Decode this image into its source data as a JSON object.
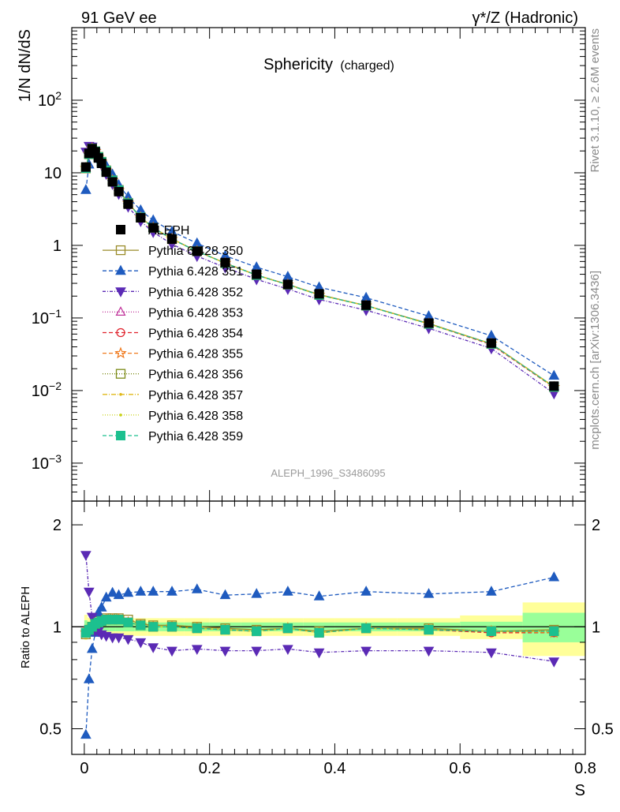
{
  "header": {
    "left": "91 GeV ee",
    "right": "γ*/Z (Hadronic)"
  },
  "side_labels": {
    "top": "Rivet 3.1.10, ≥ 2.6M events",
    "bottom": "mcplots.cern.ch [arXiv:1306.3436]"
  },
  "chart_data": [
    {
      "type": "line",
      "title": "Sphericity",
      "subtitle": "(charged)",
      "ylabel": "1/N dN/dS",
      "yscale": "log",
      "ylim": [
        0.0003,
        1000
      ],
      "xlim": [
        -0.02,
        0.8
      ],
      "ytick_labels": [
        "10^-3",
        "10^-2",
        "10^-1",
        "1",
        "10",
        "10^2"
      ],
      "watermark": "ALEPH_1996_S3486095",
      "legend_position": "middle-left",
      "x": [
        0.0025,
        0.0075,
        0.0125,
        0.0175,
        0.0225,
        0.0275,
        0.035,
        0.045,
        0.055,
        0.07,
        0.09,
        0.11,
        0.14,
        0.18,
        0.225,
        0.275,
        0.325,
        0.375,
        0.45,
        0.55,
        0.65,
        0.75
      ],
      "series": [
        {
          "name": "ALEPH",
          "color": "#000000",
          "marker": "square-filled",
          "dash": "",
          "values": [
            12,
            18.5,
            21.5,
            19.5,
            16,
            13.5,
            10.2,
            7.5,
            5.5,
            3.7,
            2.4,
            1.75,
            1.22,
            0.83,
            0.58,
            0.4,
            0.29,
            0.215,
            0.15,
            0.085,
            0.045,
            0.0115
          ]
        },
        {
          "name": "Pythia 6.428 350",
          "color": "#9a8c2a",
          "marker": "square-open",
          "dash": "",
          "values": [
            11.5,
            18,
            21.5,
            19.8,
            16.6,
            14.2,
            10.8,
            7.9,
            5.8,
            3.85,
            2.45,
            1.76,
            1.23,
            0.83,
            0.57,
            0.39,
            0.29,
            0.21,
            0.148,
            0.084,
            0.044,
            0.0113
          ]
        },
        {
          "name": "Pythia 6.428 351",
          "color": "#1f5bbf",
          "marker": "triangle-up",
          "dash": "5,3",
          "values": [
            5.8,
            13,
            18.5,
            18.8,
            17.6,
            15.3,
            12.5,
            9.5,
            6.8,
            4.65,
            3.05,
            2.22,
            1.55,
            1.07,
            0.72,
            0.5,
            0.37,
            0.265,
            0.19,
            0.106,
            0.057,
            0.016
          ]
        },
        {
          "name": "Pythia 6.428 352",
          "color": "#5b2ab5",
          "marker": "triangle-down",
          "dash": "4,2,1,2",
          "values": [
            19.5,
            23.5,
            23,
            19,
            15.5,
            12.8,
            9.6,
            7,
            5.1,
            3.4,
            2.15,
            1.52,
            1.04,
            0.71,
            0.495,
            0.34,
            0.25,
            0.18,
            0.128,
            0.072,
            0.038,
            0.0091
          ]
        },
        {
          "name": "Pythia 6.428 353",
          "color": "#c0329a",
          "marker": "triangle-open",
          "dash": "1,2",
          "values": [
            11.6,
            18.1,
            21.6,
            19.8,
            16.5,
            14.1,
            10.7,
            7.85,
            5.75,
            3.82,
            2.43,
            1.75,
            1.22,
            0.83,
            0.57,
            0.39,
            0.288,
            0.208,
            0.148,
            0.083,
            0.044,
            0.0112
          ]
        },
        {
          "name": "Pythia 6.428 354",
          "color": "#e0202a",
          "marker": "circle-open",
          "dash": "5,3",
          "values": [
            11.6,
            18.1,
            21.6,
            19.8,
            16.5,
            14.1,
            10.7,
            7.85,
            5.75,
            3.82,
            2.43,
            1.75,
            1.22,
            0.83,
            0.57,
            0.39,
            0.288,
            0.208,
            0.148,
            0.083,
            0.043,
            0.011
          ]
        },
        {
          "name": "Pythia 6.428 355",
          "color": "#f07a1e",
          "marker": "star-open",
          "dash": "5,3",
          "values": [
            11.6,
            18.1,
            21.6,
            19.8,
            16.5,
            14.1,
            10.7,
            7.85,
            5.75,
            3.82,
            2.43,
            1.75,
            1.22,
            0.83,
            0.57,
            0.39,
            0.288,
            0.208,
            0.148,
            0.083,
            0.044,
            0.0111
          ]
        },
        {
          "name": "Pythia 6.428 356",
          "color": "#7d8c1a",
          "marker": "square-open",
          "dash": "1,2",
          "values": [
            11.6,
            18.1,
            21.6,
            19.8,
            16.5,
            14.1,
            10.7,
            7.85,
            5.75,
            3.82,
            2.43,
            1.75,
            1.22,
            0.83,
            0.57,
            0.39,
            0.288,
            0.208,
            0.148,
            0.083,
            0.044,
            0.0112
          ]
        },
        {
          "name": "Pythia 6.428 357",
          "color": "#e0b818",
          "marker": "dot",
          "dash": "6,2,1,2",
          "values": [
            11.6,
            18.1,
            21.6,
            19.8,
            16.5,
            14.1,
            10.7,
            7.85,
            5.75,
            3.82,
            2.43,
            1.75,
            1.22,
            0.83,
            0.57,
            0.39,
            0.288,
            0.208,
            0.148,
            0.083,
            0.044,
            0.0112
          ]
        },
        {
          "name": "Pythia 6.428 358",
          "color": "#c9d21a",
          "marker": "dot",
          "dash": "1,2",
          "values": [
            11.6,
            18.1,
            21.6,
            19.8,
            16.5,
            14.1,
            10.7,
            7.85,
            5.75,
            3.82,
            2.43,
            1.75,
            1.22,
            0.83,
            0.57,
            0.39,
            0.288,
            0.208,
            0.148,
            0.083,
            0.044,
            0.0112
          ]
        },
        {
          "name": "Pythia 6.428 359",
          "color": "#1cc08f",
          "marker": "square-filled",
          "dash": "5,3",
          "values": [
            11.6,
            18.1,
            21.6,
            19.8,
            16.5,
            14.1,
            10.7,
            7.85,
            5.75,
            3.82,
            2.43,
            1.75,
            1.22,
            0.83,
            0.57,
            0.39,
            0.288,
            0.208,
            0.148,
            0.083,
            0.044,
            0.0112
          ]
        }
      ]
    },
    {
      "type": "line",
      "title": "",
      "ylabel": "Ratio to ALEPH",
      "xlabel": "S",
      "yscale": "log",
      "ylim": [
        0.42,
        2.35
      ],
      "xlim": [
        -0.02,
        0.8
      ],
      "ytick_labels": [
        "0.5",
        "1",
        "2"
      ],
      "xtick_labels": [
        "0",
        "0.2",
        "0.4",
        "0.6",
        "0.8"
      ],
      "band_edges": [
        0.0,
        0.005,
        0.01,
        0.015,
        0.02,
        0.025,
        0.03,
        0.04,
        0.05,
        0.06,
        0.08,
        0.1,
        0.12,
        0.16,
        0.2,
        0.25,
        0.3,
        0.35,
        0.4,
        0.5,
        0.6,
        0.7,
        0.8
      ],
      "band_stat": [
        0.045,
        0.035,
        0.03,
        0.03,
        0.03,
        0.03,
        0.03,
        0.03,
        0.03,
        0.03,
        0.03,
        0.03,
        0.03,
        0.03,
        0.03,
        0.03,
        0.03,
        0.03,
        0.03,
        0.03,
        0.035,
        0.1
      ],
      "band_total": [
        0.085,
        0.065,
        0.06,
        0.06,
        0.06,
        0.06,
        0.06,
        0.06,
        0.06,
        0.06,
        0.06,
        0.06,
        0.06,
        0.06,
        0.06,
        0.06,
        0.06,
        0.06,
        0.06,
        0.06,
        0.08,
        0.18
      ],
      "ratio_values": {
        "Pythia 6.428 350": [
          0.95,
          0.97,
          1.0,
          1.02,
          1.04,
          1.05,
          1.06,
          1.06,
          1.06,
          1.05,
          1.02,
          1.01,
          1.01,
          1.0,
          0.99,
          0.98,
          0.99,
          0.97,
          0.99,
          0.99,
          0.97,
          0.98
        ],
        "Pythia 6.428 351": [
          0.48,
          0.7,
          0.86,
          0.96,
          1.1,
          1.14,
          1.22,
          1.26,
          1.24,
          1.26,
          1.27,
          1.27,
          1.27,
          1.29,
          1.24,
          1.25,
          1.27,
          1.23,
          1.27,
          1.25,
          1.27,
          1.4
        ],
        "Pythia 6.428 352": [
          1.63,
          1.27,
          1.07,
          0.97,
          0.97,
          0.95,
          0.94,
          0.93,
          0.93,
          0.92,
          0.9,
          0.87,
          0.85,
          0.86,
          0.85,
          0.85,
          0.86,
          0.84,
          0.85,
          0.85,
          0.84,
          0.79
        ],
        "Pythia 6.428 353": [
          0.96,
          0.98,
          1.0,
          1.02,
          1.03,
          1.04,
          1.05,
          1.05,
          1.05,
          1.03,
          1.01,
          1.0,
          1.0,
          0.99,
          0.98,
          0.97,
          0.99,
          0.96,
          0.99,
          0.98,
          0.97,
          0.97
        ],
        "Pythia 6.428 354": [
          0.96,
          0.98,
          1.0,
          1.02,
          1.03,
          1.04,
          1.05,
          1.05,
          1.05,
          1.03,
          1.01,
          1.0,
          1.0,
          0.99,
          0.98,
          0.97,
          0.99,
          0.96,
          0.99,
          0.98,
          0.96,
          0.96
        ],
        "Pythia 6.428 355": [
          0.96,
          0.98,
          1.0,
          1.02,
          1.03,
          1.04,
          1.05,
          1.05,
          1.05,
          1.03,
          1.01,
          1.0,
          1.0,
          0.99,
          0.98,
          0.97,
          0.99,
          0.96,
          0.99,
          0.98,
          0.97,
          0.96
        ],
        "Pythia 6.428 356": [
          0.96,
          0.98,
          1.0,
          1.02,
          1.03,
          1.04,
          1.05,
          1.05,
          1.05,
          1.03,
          1.01,
          1.0,
          1.0,
          0.99,
          0.98,
          0.97,
          0.99,
          0.96,
          0.99,
          0.98,
          0.97,
          0.97
        ],
        "Pythia 6.428 357": [
          0.96,
          0.98,
          1.0,
          1.02,
          1.03,
          1.04,
          1.05,
          1.05,
          1.05,
          1.03,
          1.01,
          1.0,
          1.0,
          0.99,
          0.98,
          0.97,
          0.99,
          0.96,
          0.99,
          0.98,
          0.97,
          0.97
        ],
        "Pythia 6.428 358": [
          0.96,
          0.98,
          1.0,
          1.02,
          1.03,
          1.04,
          1.05,
          1.05,
          1.05,
          1.03,
          1.01,
          1.0,
          1.0,
          0.99,
          0.98,
          0.97,
          0.99,
          0.96,
          0.99,
          0.98,
          0.97,
          0.97
        ],
        "Pythia 6.428 359": [
          0.96,
          0.98,
          1.0,
          1.02,
          1.03,
          1.04,
          1.05,
          1.05,
          1.05,
          1.03,
          1.01,
          1.0,
          1.0,
          0.99,
          0.98,
          0.97,
          0.99,
          0.96,
          0.99,
          0.98,
          0.97,
          0.97
        ]
      }
    }
  ]
}
